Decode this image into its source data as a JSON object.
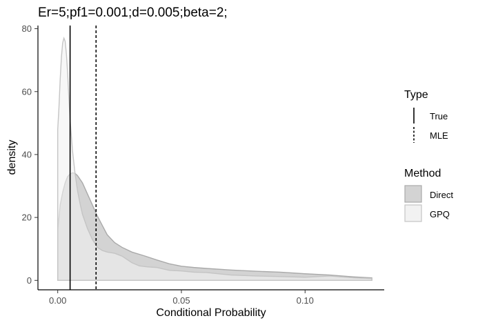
{
  "chart_data": {
    "type": "area",
    "title": "Er=5;pf1=0.001;d=0.005;beta=2;",
    "xlabel": "Conditional Probability",
    "ylabel": "density",
    "xlim": [
      -0.008,
      0.132
    ],
    "ylim": [
      -3,
      81
    ],
    "x_ticks": [
      0.0,
      0.05,
      0.1
    ],
    "x_tick_labels": [
      "0.00",
      "0.05",
      "0.10"
    ],
    "y_ticks": [
      0,
      20,
      40,
      60,
      80
    ],
    "y_tick_labels": [
      "0",
      "20",
      "40",
      "60",
      "80"
    ],
    "grid": false,
    "legend_position": "right",
    "series": [
      {
        "name": "Direct",
        "fill": "#d3d3d3",
        "stroke": "#a9a9a9",
        "x": [
          0.0,
          0.001,
          0.002,
          0.003,
          0.004,
          0.005,
          0.006,
          0.007,
          0.008,
          0.01,
          0.012,
          0.014,
          0.016,
          0.018,
          0.02,
          0.023,
          0.026,
          0.03,
          0.035,
          0.04,
          0.045,
          0.05,
          0.055,
          0.06,
          0.07,
          0.08,
          0.09,
          0.1,
          0.11,
          0.12,
          0.127
        ],
        "y": [
          16,
          24,
          28,
          31,
          33,
          33.8,
          34.2,
          34,
          33.3,
          31,
          27.5,
          24,
          20.5,
          17.5,
          14.5,
          12,
          10.5,
          9,
          7.8,
          6.5,
          5.3,
          4.5,
          4.1,
          3.8,
          3.3,
          2.9,
          2.6,
          2.1,
          1.7,
          1.1,
          0.8
        ]
      },
      {
        "name": "GPQ",
        "fill": "#f2f2f2",
        "stroke": "#c4c4c4",
        "x": [
          0.0,
          0.0005,
          0.001,
          0.0015,
          0.002,
          0.0025,
          0.003,
          0.0035,
          0.004,
          0.0045,
          0.005,
          0.006,
          0.007,
          0.008,
          0.009,
          0.01,
          0.012,
          0.014,
          0.016,
          0.018,
          0.02,
          0.023,
          0.026,
          0.03,
          0.033,
          0.036,
          0.04,
          0.045,
          0.05,
          0.055,
          0.06,
          0.07,
          0.08,
          0.09,
          0.1,
          0.11,
          0.12,
          0.127
        ],
        "y": [
          48,
          55,
          64,
          71,
          75.5,
          77,
          76,
          72,
          66,
          58,
          51,
          41,
          34,
          28.5,
          24.5,
          21,
          16.5,
          13,
          10.5,
          9.5,
          9,
          8.6,
          7.7,
          5.6,
          4.6,
          4.3,
          4.1,
          3.2,
          3.0,
          2.6,
          2.5,
          1.7,
          1.4,
          1.2,
          1.0,
          1.4,
          0.8,
          0.6
        ]
      }
    ],
    "vlines": [
      {
        "name": "True",
        "x": 0.005,
        "style": "solid"
      },
      {
        "name": "MLE",
        "x": 0.0155,
        "style": "dashed"
      }
    ],
    "legends": [
      {
        "title": "Type",
        "items": [
          {
            "label": "True",
            "style": "solid"
          },
          {
            "label": "MLE",
            "style": "dashed"
          }
        ]
      },
      {
        "title": "Method",
        "items": [
          {
            "label": "Direct",
            "fill": "#d3d3d3",
            "stroke": "#a9a9a9"
          },
          {
            "label": "GPQ",
            "fill": "#f2f2f2",
            "stroke": "#c4c4c4"
          }
        ]
      }
    ]
  }
}
